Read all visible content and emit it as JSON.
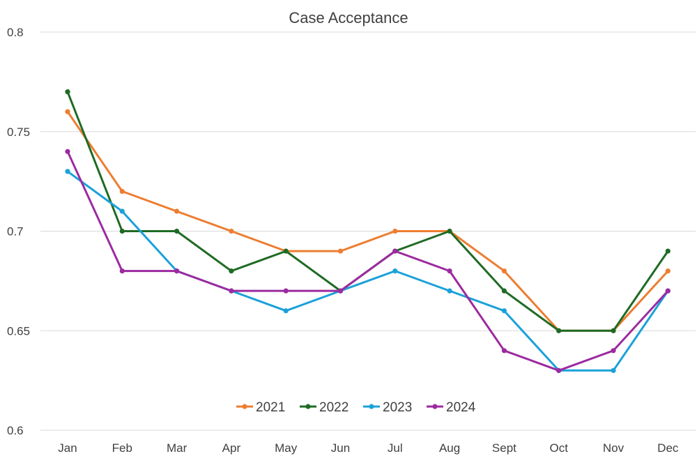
{
  "chart_data": {
    "type": "line",
    "title": "Case Acceptance",
    "xlabel": "",
    "ylabel": "",
    "categories": [
      "Jan",
      "Feb",
      "Mar",
      "Apr",
      "May",
      "Jun",
      "Jul",
      "Aug",
      "Sept",
      "Oct",
      "Nov",
      "Dec"
    ],
    "ylim": [
      0.6,
      0.8
    ],
    "yticks": [
      "0.6",
      "0.65",
      "0.7",
      "0.75",
      "0.8"
    ],
    "grid": true,
    "legend_position": "bottom",
    "series": [
      {
        "name": "2021",
        "color": "#ED7D31",
        "values": [
          0.76,
          0.72,
          0.71,
          0.7,
          0.69,
          0.69,
          0.7,
          0.7,
          0.68,
          0.65,
          0.65,
          0.68
        ]
      },
      {
        "name": "2022",
        "color": "#1E6B24",
        "values": [
          0.77,
          0.7,
          0.7,
          0.68,
          0.69,
          0.67,
          0.69,
          0.7,
          0.67,
          0.65,
          0.65,
          0.69
        ]
      },
      {
        "name": "2023",
        "color": "#1BA1DA",
        "values": [
          0.73,
          0.71,
          0.68,
          0.67,
          0.66,
          0.67,
          0.68,
          0.67,
          0.66,
          0.63,
          0.63,
          0.67
        ]
      },
      {
        "name": "2024",
        "color": "#9C2AA0",
        "values": [
          0.74,
          0.68,
          0.68,
          0.67,
          0.67,
          0.67,
          0.69,
          0.68,
          0.64,
          0.63,
          0.64,
          0.67
        ]
      }
    ]
  }
}
